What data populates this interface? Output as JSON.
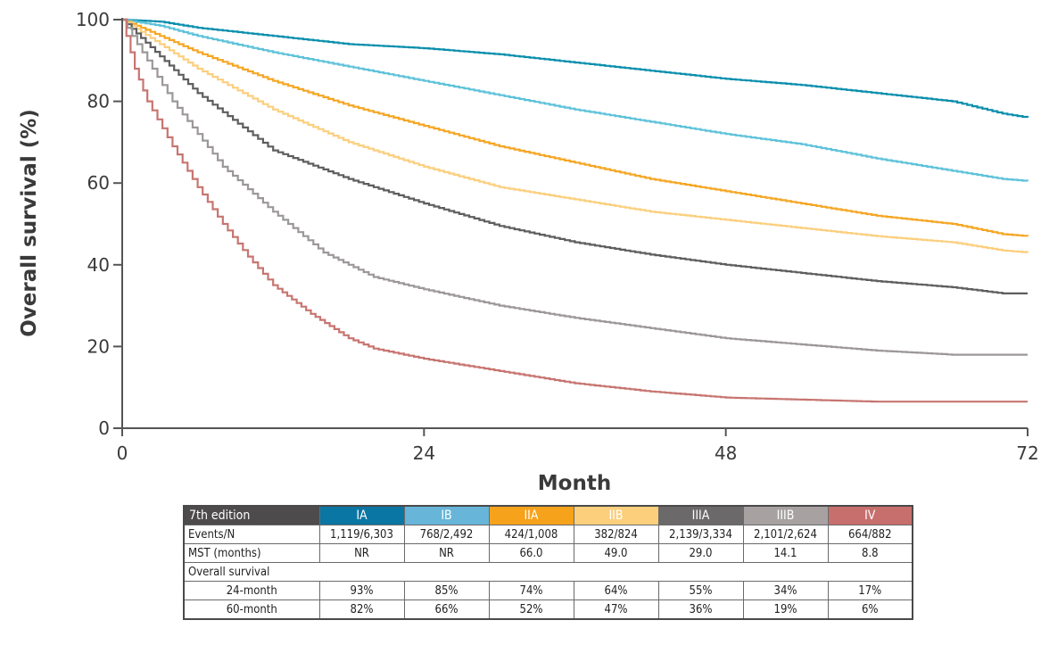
{
  "chart_data": {
    "type": "line",
    "xlabel": "Month",
    "ylabel": "Overall survival (%)",
    "xlim": [
      0,
      72
    ],
    "ylim": [
      0,
      100
    ],
    "xticks": [
      0,
      24,
      48,
      72
    ],
    "yticks": [
      0,
      20,
      40,
      60,
      80,
      100
    ],
    "grid": false,
    "series": [
      {
        "name": "IA",
        "color": "#0b8fad",
        "x": [
          0,
          3,
          6,
          12,
          18,
          24,
          30,
          36,
          42,
          48,
          54,
          60,
          66,
          70,
          72
        ],
        "y": [
          100,
          99.5,
          98,
          96,
          94,
          93,
          91.5,
          89.5,
          87.5,
          85.5,
          84,
          82,
          80,
          77,
          76
        ]
      },
      {
        "name": "IB",
        "color": "#5ec2da",
        "x": [
          0,
          3,
          6,
          12,
          18,
          24,
          30,
          36,
          42,
          48,
          54,
          60,
          66,
          70,
          72
        ],
        "y": [
          100,
          98.5,
          96,
          92,
          88.5,
          85,
          81.5,
          78,
          75,
          72,
          69.5,
          66,
          63,
          61,
          60.5
        ]
      },
      {
        "name": "IIA",
        "color": "#f5a623",
        "x": [
          0,
          3,
          6,
          12,
          18,
          24,
          30,
          36,
          42,
          48,
          54,
          60,
          66,
          70,
          72
        ],
        "y": [
          100,
          96,
          92,
          85,
          79,
          74,
          69,
          65,
          61,
          58,
          55,
          52,
          50,
          47.5,
          47
        ]
      },
      {
        "name": "IIB",
        "color": "#fbcf7e",
        "x": [
          0,
          3,
          6,
          12,
          18,
          24,
          30,
          36,
          42,
          48,
          54,
          60,
          66,
          70,
          72
        ],
        "y": [
          100,
          94,
          88,
          78,
          70,
          64,
          59,
          56,
          53,
          51,
          49,
          47,
          45.5,
          43.5,
          43
        ]
      },
      {
        "name": "IIIA",
        "color": "#5f5d5e",
        "x": [
          0,
          3,
          6,
          12,
          18,
          24,
          30,
          36,
          42,
          48,
          54,
          60,
          66,
          70,
          72
        ],
        "y": [
          100,
          91,
          82,
          68,
          61,
          55,
          49.5,
          45.5,
          42.5,
          40,
          38,
          36,
          34.5,
          33,
          33
        ]
      },
      {
        "name": "IIIB",
        "color": "#9c9798",
        "x": [
          0,
          2,
          4,
          8,
          12,
          16,
          20,
          24,
          30,
          36,
          42,
          48,
          54,
          60,
          66,
          72
        ],
        "y": [
          100,
          90,
          80,
          64,
          53,
          43,
          37,
          34,
          30,
          27,
          24.5,
          22,
          20.5,
          19,
          18,
          18
        ]
      },
      {
        "name": "IV",
        "color": "#c77570",
        "x": [
          0,
          1,
          2,
          4,
          6,
          8,
          10,
          12,
          15,
          18,
          20,
          24,
          30,
          36,
          42,
          48,
          54,
          60,
          66,
          72
        ],
        "y": [
          100,
          88,
          80,
          69,
          59,
          50,
          42,
          35,
          28,
          22,
          19.5,
          17,
          14,
          11,
          9,
          7.5,
          7,
          6.5,
          6.5,
          6.5
        ]
      }
    ]
  },
  "table": {
    "edition_label": "7th edition",
    "stages": [
      {
        "label": "IA",
        "color": "#0a76a4"
      },
      {
        "label": "IB",
        "color": "#67b5d9"
      },
      {
        "label": "IIA",
        "color": "#f7a21b"
      },
      {
        "label": "IIB",
        "color": "#fccf7c"
      },
      {
        "label": "IIIA",
        "color": "#6b6969"
      },
      {
        "label": "IIIB",
        "color": "#a7a1a2"
      },
      {
        "label": "IV",
        "color": "#c76f6c"
      }
    ],
    "rows": [
      {
        "label": "Events/N",
        "values": [
          "1,119/6,303",
          "768/2,492",
          "424/1,008",
          "382/824",
          "2,139/3,334",
          "2,101/2,624",
          "664/882"
        ]
      },
      {
        "label": "MST (months)",
        "values": [
          "NR",
          "NR",
          "66.0",
          "49.0",
          "29.0",
          "14.1",
          "8.8"
        ]
      }
    ],
    "section_label": "Overall survival",
    "sub_rows": [
      {
        "label": "24-month",
        "values": [
          "93%",
          "85%",
          "74%",
          "64%",
          "55%",
          "34%",
          "17%"
        ]
      },
      {
        "label": "60-month",
        "values": [
          "82%",
          "66%",
          "52%",
          "47%",
          "36%",
          "19%",
          "6%"
        ]
      }
    ]
  }
}
